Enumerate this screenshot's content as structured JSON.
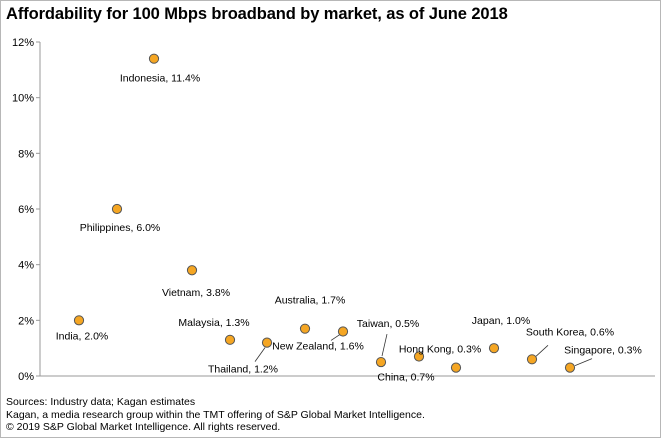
{
  "title": "Affordability for 100 Mbps broadband by market, as of June 2018",
  "footer": {
    "sources": "Sources: Industry data; Kagan estimates",
    "kagan": "Kagan, a media research group within the TMT offering of S&P Global Market Intelligence.",
    "copyright": "© 2019 S&P Global Market Intelligence. All rights reserved."
  },
  "colors": {
    "marker_fill": "#f5a623",
    "marker_stroke": "#555555",
    "axis": "#999999",
    "leader": "#333333"
  },
  "chart_data": {
    "type": "scatter",
    "title": "Affordability for 100 Mbps broadband by market, as of June 2018",
    "xlabel": "",
    "ylabel": "",
    "ylim": [
      0,
      12
    ],
    "xlim": [
      0,
      14
    ],
    "yticks": [
      "0%",
      "2%",
      "4%",
      "6%",
      "8%",
      "10%",
      "12%"
    ],
    "grid": false,
    "legend": "none",
    "points": [
      {
        "label": "India, 2.0%",
        "x": 1,
        "y": 2.0
      },
      {
        "label": "Philippines, 6.0%",
        "x": 2,
        "y": 6.0
      },
      {
        "label": "Indonesia, 11.4%",
        "x": 3,
        "y": 11.4
      },
      {
        "label": "Vietnam, 3.8%",
        "x": 4,
        "y": 3.8
      },
      {
        "label": "Malaysia, 1.3%",
        "x": 5,
        "y": 1.3
      },
      {
        "label": "Thailand, 1.2%",
        "x": 6,
        "y": 1.2
      },
      {
        "label": "Australia, 1.7%",
        "x": 7,
        "y": 1.7
      },
      {
        "label": "New Zealand, 1.6%",
        "x": 8,
        "y": 1.6
      },
      {
        "label": "Taiwan, 0.5%",
        "x": 9,
        "y": 0.5
      },
      {
        "label": "China, 0.7%",
        "x": 10,
        "y": 0.7
      },
      {
        "label": "Hong Kong, 0.3%",
        "x": 11,
        "y": 0.3
      },
      {
        "label": "Japan, 1.0%",
        "x": 12,
        "y": 1.0
      },
      {
        "label": "South Korea, 0.6%",
        "x": 13,
        "y": 0.6
      },
      {
        "label": "Singapore, 0.3%",
        "x": 14,
        "y": 0.3
      }
    ]
  }
}
